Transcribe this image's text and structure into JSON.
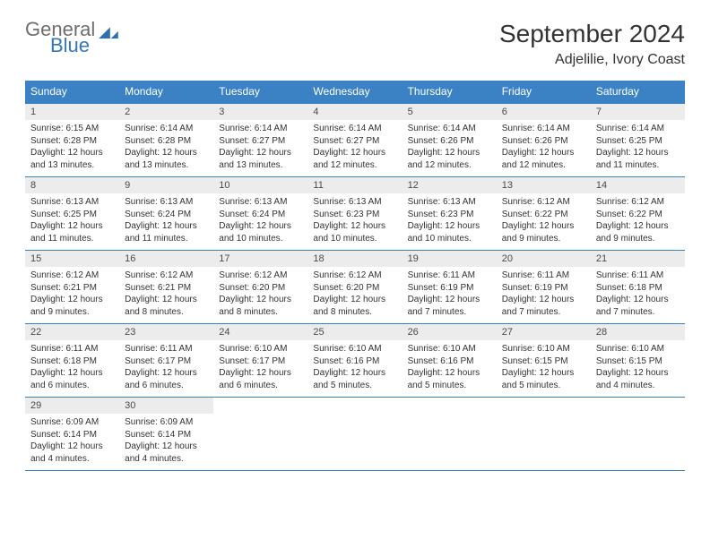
{
  "brand": {
    "word1": "General",
    "word2": "Blue",
    "mark_color": "#2d6fb0"
  },
  "title": "September 2024",
  "location": "Adjelilie, Ivory Coast",
  "colors": {
    "header_bar": "#3b82c4",
    "daynum_bg": "#ececec",
    "rule": "#3b82c4",
    "text": "#333333",
    "logo_gray": "#6e6e6e",
    "logo_blue": "#3478b8"
  },
  "weekdays": [
    "Sunday",
    "Monday",
    "Tuesday",
    "Wednesday",
    "Thursday",
    "Friday",
    "Saturday"
  ],
  "weeks": [
    [
      {
        "n": "1",
        "sr": "6:15 AM",
        "ss": "6:28 PM",
        "dl": "12 hours and 13 minutes."
      },
      {
        "n": "2",
        "sr": "6:14 AM",
        "ss": "6:28 PM",
        "dl": "12 hours and 13 minutes."
      },
      {
        "n": "3",
        "sr": "6:14 AM",
        "ss": "6:27 PM",
        "dl": "12 hours and 13 minutes."
      },
      {
        "n": "4",
        "sr": "6:14 AM",
        "ss": "6:27 PM",
        "dl": "12 hours and 12 minutes."
      },
      {
        "n": "5",
        "sr": "6:14 AM",
        "ss": "6:26 PM",
        "dl": "12 hours and 12 minutes."
      },
      {
        "n": "6",
        "sr": "6:14 AM",
        "ss": "6:26 PM",
        "dl": "12 hours and 12 minutes."
      },
      {
        "n": "7",
        "sr": "6:14 AM",
        "ss": "6:25 PM",
        "dl": "12 hours and 11 minutes."
      }
    ],
    [
      {
        "n": "8",
        "sr": "6:13 AM",
        "ss": "6:25 PM",
        "dl": "12 hours and 11 minutes."
      },
      {
        "n": "9",
        "sr": "6:13 AM",
        "ss": "6:24 PM",
        "dl": "12 hours and 11 minutes."
      },
      {
        "n": "10",
        "sr": "6:13 AM",
        "ss": "6:24 PM",
        "dl": "12 hours and 10 minutes."
      },
      {
        "n": "11",
        "sr": "6:13 AM",
        "ss": "6:23 PM",
        "dl": "12 hours and 10 minutes."
      },
      {
        "n": "12",
        "sr": "6:13 AM",
        "ss": "6:23 PM",
        "dl": "12 hours and 10 minutes."
      },
      {
        "n": "13",
        "sr": "6:12 AM",
        "ss": "6:22 PM",
        "dl": "12 hours and 9 minutes."
      },
      {
        "n": "14",
        "sr": "6:12 AM",
        "ss": "6:22 PM",
        "dl": "12 hours and 9 minutes."
      }
    ],
    [
      {
        "n": "15",
        "sr": "6:12 AM",
        "ss": "6:21 PM",
        "dl": "12 hours and 9 minutes."
      },
      {
        "n": "16",
        "sr": "6:12 AM",
        "ss": "6:21 PM",
        "dl": "12 hours and 8 minutes."
      },
      {
        "n": "17",
        "sr": "6:12 AM",
        "ss": "6:20 PM",
        "dl": "12 hours and 8 minutes."
      },
      {
        "n": "18",
        "sr": "6:12 AM",
        "ss": "6:20 PM",
        "dl": "12 hours and 8 minutes."
      },
      {
        "n": "19",
        "sr": "6:11 AM",
        "ss": "6:19 PM",
        "dl": "12 hours and 7 minutes."
      },
      {
        "n": "20",
        "sr": "6:11 AM",
        "ss": "6:19 PM",
        "dl": "12 hours and 7 minutes."
      },
      {
        "n": "21",
        "sr": "6:11 AM",
        "ss": "6:18 PM",
        "dl": "12 hours and 7 minutes."
      }
    ],
    [
      {
        "n": "22",
        "sr": "6:11 AM",
        "ss": "6:18 PM",
        "dl": "12 hours and 6 minutes."
      },
      {
        "n": "23",
        "sr": "6:11 AM",
        "ss": "6:17 PM",
        "dl": "12 hours and 6 minutes."
      },
      {
        "n": "24",
        "sr": "6:10 AM",
        "ss": "6:17 PM",
        "dl": "12 hours and 6 minutes."
      },
      {
        "n": "25",
        "sr": "6:10 AM",
        "ss": "6:16 PM",
        "dl": "12 hours and 5 minutes."
      },
      {
        "n": "26",
        "sr": "6:10 AM",
        "ss": "6:16 PM",
        "dl": "12 hours and 5 minutes."
      },
      {
        "n": "27",
        "sr": "6:10 AM",
        "ss": "6:15 PM",
        "dl": "12 hours and 5 minutes."
      },
      {
        "n": "28",
        "sr": "6:10 AM",
        "ss": "6:15 PM",
        "dl": "12 hours and 4 minutes."
      }
    ],
    [
      {
        "n": "29",
        "sr": "6:09 AM",
        "ss": "6:14 PM",
        "dl": "12 hours and 4 minutes."
      },
      {
        "n": "30",
        "sr": "6:09 AM",
        "ss": "6:14 PM",
        "dl": "12 hours and 4 minutes."
      },
      null,
      null,
      null,
      null,
      null
    ]
  ],
  "labels": {
    "sunrise": "Sunrise:",
    "sunset": "Sunset:",
    "daylight": "Daylight:"
  }
}
